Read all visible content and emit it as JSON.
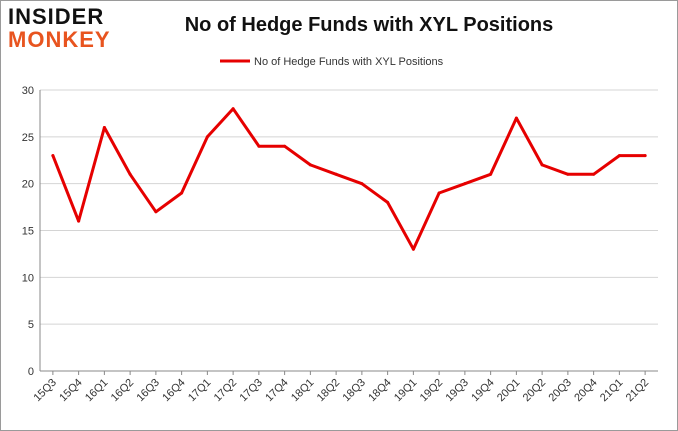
{
  "logo": {
    "line1": "INSIDER",
    "line2": "MONKEY"
  },
  "chart_data": {
    "type": "line",
    "title": "No of Hedge Funds with XYL Positions",
    "categories": [
      "15Q3",
      "15Q4",
      "16Q1",
      "16Q2",
      "16Q3",
      "16Q4",
      "17Q1",
      "17Q2",
      "17Q3",
      "17Q4",
      "18Q1",
      "18Q2",
      "18Q3",
      "18Q4",
      "19Q1",
      "19Q2",
      "19Q3",
      "19Q4",
      "20Q1",
      "20Q2",
      "20Q3",
      "20Q4",
      "21Q1",
      "21Q2"
    ],
    "series": [
      {
        "name": "No of Hedge Funds with XYL Positions",
        "values": [
          23,
          16,
          26,
          21,
          17,
          19,
          25,
          28,
          24,
          24,
          22,
          21,
          20,
          18,
          13,
          19,
          20,
          21,
          27,
          22,
          21,
          21,
          23,
          23
        ]
      }
    ],
    "ylim": [
      0,
      30
    ],
    "yticks": [
      0,
      5,
      10,
      15,
      20,
      25,
      30
    ],
    "grid": true,
    "legend": "top",
    "colors": {
      "line": "#e60000",
      "grid": "#d4d4d4",
      "axis": "#888888"
    }
  }
}
